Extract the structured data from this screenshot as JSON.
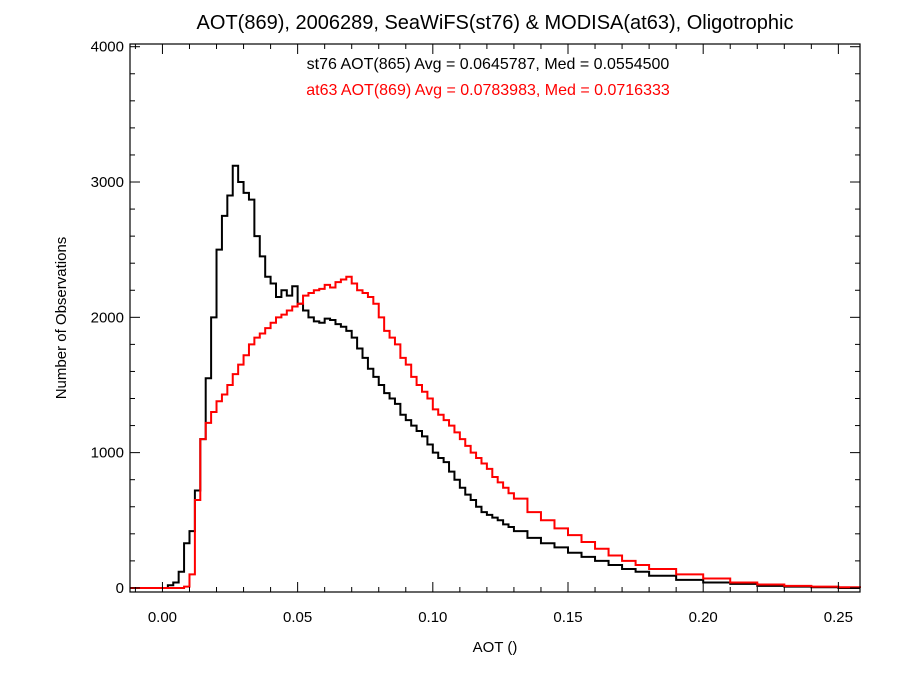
{
  "chart_data": {
    "type": "line",
    "title": "AOT(869), 2006289, SeaWiFS(st76) & MODISA(at63), Oligotrophic",
    "xlabel": "AOT ()",
    "ylabel": "Number of Observations",
    "xlim": [
      -0.012,
      0.258
    ],
    "ylim": [
      -30,
      4020
    ],
    "xticks": [
      0.0,
      0.05,
      0.1,
      0.15,
      0.2,
      0.25
    ],
    "xtick_labels": [
      "0.00",
      "0.05",
      "0.10",
      "0.15",
      "0.20",
      "0.25"
    ],
    "yticks": [
      0,
      1000,
      2000,
      3000,
      4000
    ],
    "ytick_labels": [
      "0",
      "1000",
      "2000",
      "3000",
      "4000"
    ],
    "grid": false,
    "step": true,
    "annotations": [
      {
        "text": "st76 AOT(865) Avg = 0.0645787, Med = 0.0554500",
        "color": "#000000"
      },
      {
        "text": "at63 AOT(869) Avg = 0.0783983, Med = 0.0716333",
        "color": "#ff0000"
      }
    ],
    "series": [
      {
        "color": "#000000",
        "x": [
          -0.012,
          0.0,
          0.002,
          0.004,
          0.006,
          0.008,
          0.01,
          0.012,
          0.014,
          0.016,
          0.018,
          0.02,
          0.022,
          0.024,
          0.026,
          0.028,
          0.03,
          0.032,
          0.034,
          0.036,
          0.038,
          0.04,
          0.042,
          0.044,
          0.046,
          0.048,
          0.05,
          0.052,
          0.054,
          0.056,
          0.058,
          0.06,
          0.062,
          0.064,
          0.066,
          0.068,
          0.07,
          0.072,
          0.074,
          0.076,
          0.078,
          0.08,
          0.082,
          0.084,
          0.086,
          0.088,
          0.09,
          0.092,
          0.094,
          0.096,
          0.098,
          0.1,
          0.102,
          0.104,
          0.106,
          0.108,
          0.11,
          0.112,
          0.114,
          0.116,
          0.118,
          0.12,
          0.122,
          0.124,
          0.126,
          0.128,
          0.13,
          0.135,
          0.14,
          0.145,
          0.15,
          0.155,
          0.16,
          0.165,
          0.17,
          0.175,
          0.18,
          0.19,
          0.2,
          0.21,
          0.22,
          0.23,
          0.24,
          0.25,
          0.258
        ],
        "y": [
          0,
          0,
          20,
          40,
          120,
          330,
          420,
          720,
          1100,
          1550,
          2000,
          2500,
          2750,
          2900,
          3120,
          3000,
          2920,
          2870,
          2600,
          2450,
          2300,
          2250,
          2150,
          2200,
          2160,
          2230,
          2100,
          2050,
          2000,
          1970,
          1960,
          1990,
          1980,
          1950,
          1930,
          1900,
          1850,
          1770,
          1700,
          1620,
          1560,
          1500,
          1440,
          1400,
          1360,
          1280,
          1240,
          1200,
          1160,
          1120,
          1060,
          1000,
          960,
          930,
          860,
          800,
          740,
          690,
          650,
          600,
          560,
          540,
          520,
          500,
          470,
          450,
          420,
          370,
          330,
          300,
          260,
          230,
          200,
          170,
          140,
          120,
          90,
          60,
          40,
          30,
          15,
          10,
          5,
          0,
          0
        ]
      },
      {
        "color": "#ff0000",
        "x": [
          -0.012,
          0.0,
          0.004,
          0.008,
          0.01,
          0.012,
          0.014,
          0.016,
          0.018,
          0.02,
          0.022,
          0.024,
          0.026,
          0.028,
          0.03,
          0.032,
          0.034,
          0.036,
          0.038,
          0.04,
          0.042,
          0.044,
          0.046,
          0.048,
          0.05,
          0.052,
          0.054,
          0.056,
          0.058,
          0.06,
          0.062,
          0.064,
          0.066,
          0.068,
          0.07,
          0.072,
          0.074,
          0.076,
          0.078,
          0.08,
          0.082,
          0.084,
          0.086,
          0.088,
          0.09,
          0.092,
          0.094,
          0.096,
          0.098,
          0.1,
          0.102,
          0.104,
          0.106,
          0.108,
          0.11,
          0.112,
          0.114,
          0.116,
          0.118,
          0.12,
          0.122,
          0.124,
          0.126,
          0.128,
          0.13,
          0.135,
          0.14,
          0.145,
          0.15,
          0.155,
          0.16,
          0.165,
          0.17,
          0.175,
          0.18,
          0.19,
          0.2,
          0.21,
          0.22,
          0.23,
          0.24,
          0.25,
          0.258
        ],
        "y": [
          0,
          0,
          0,
          10,
          100,
          650,
          1100,
          1220,
          1300,
          1380,
          1430,
          1500,
          1580,
          1650,
          1720,
          1800,
          1850,
          1880,
          1920,
          1960,
          2000,
          2020,
          2050,
          2080,
          2100,
          2160,
          2180,
          2200,
          2210,
          2240,
          2220,
          2260,
          2280,
          2300,
          2250,
          2200,
          2180,
          2150,
          2100,
          2000,
          1900,
          1850,
          1800,
          1700,
          1650,
          1560,
          1500,
          1450,
          1400,
          1320,
          1280,
          1240,
          1200,
          1150,
          1100,
          1050,
          1000,
          960,
          920,
          880,
          820,
          780,
          740,
          700,
          660,
          560,
          500,
          440,
          390,
          340,
          290,
          240,
          200,
          170,
          140,
          100,
          70,
          40,
          25,
          15,
          10,
          5,
          0
        ]
      }
    ]
  }
}
